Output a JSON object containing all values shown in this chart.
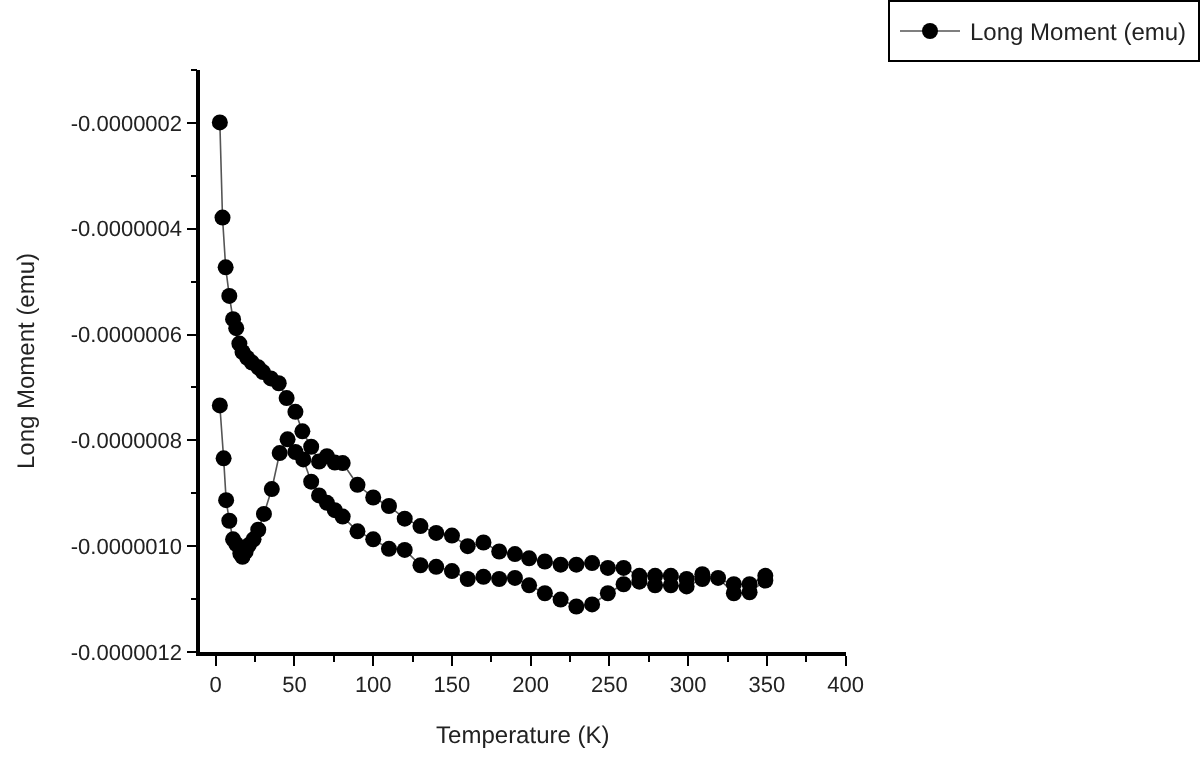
{
  "chart_data": {
    "type": "line",
    "xlabel": "Temperature (K)",
    "ylabel": "Long Moment (emu)",
    "xlim": [
      -10,
      400
    ],
    "xticks": [
      0,
      50,
      100,
      150,
      200,
      250,
      300,
      350,
      400
    ],
    "ylim": [
      -1.2e-06,
      -1e-07
    ],
    "yticks": [
      {
        "value": -1.2e-06,
        "label": "-0.0000012"
      },
      {
        "value": -1e-06,
        "label": "-0.0000010"
      },
      {
        "value": -8e-07,
        "label": "-0.0000008"
      },
      {
        "value": -6e-07,
        "label": "-0.0000006"
      },
      {
        "value": -4e-07,
        "label": "-0.0000004"
      },
      {
        "value": -2e-07,
        "label": "-0.0000002"
      }
    ],
    "legend": "top right",
    "marker": "circle",
    "line_style": "solid",
    "series": [
      {
        "name": "Long Moment (emu)",
        "color": "#000000",
        "x": [
          2.6,
          5,
          6.6,
          8.6,
          11,
          13,
          15.6,
          17,
          19,
          21,
          24,
          27,
          30.6,
          35.6,
          40.6,
          45.6,
          50.6,
          55.6,
          60.6,
          65.6,
          70.6,
          75.6,
          80.6,
          90,
          100,
          110,
          120,
          130,
          140,
          150,
          160,
          170,
          180,
          190,
          199,
          209,
          219,
          229,
          239,
          249,
          259,
          269,
          279,
          289,
          299,
          309,
          319,
          329,
          339,
          349,
          349,
          339,
          329,
          309,
          299,
          289,
          279,
          269,
          259,
          249,
          239,
          229,
          219,
          209,
          199,
          190,
          180,
          170,
          160,
          150,
          140,
          130,
          120,
          110,
          100,
          90,
          80.6,
          75.6,
          70.6,
          65.6,
          60.6,
          55,
          50.6,
          45,
          40,
          35,
          30,
          27,
          23,
          20,
          17,
          15,
          13,
          11,
          8.6,
          6.3,
          4.3,
          2.6
        ],
        "values": [
          -7.34e-07,
          -8.34e-07,
          -9.13e-07,
          -9.52e-07,
          -9.87e-07,
          -9.96e-07,
          -1.014e-06,
          -1.02e-06,
          -1.01e-06,
          -9.98e-07,
          -9.87e-07,
          -9.69e-07,
          -9.39e-07,
          -8.92e-07,
          -8.24e-07,
          -7.98e-07,
          -8.22e-07,
          -8.36e-07,
          -8.78e-07,
          -9.04e-07,
          -9.18e-07,
          -9.32e-07,
          -9.44e-07,
          -9.72e-07,
          -9.87e-07,
          -1.005e-06,
          -1.007e-06,
          -1.036e-06,
          -1.039e-06,
          -1.047e-06,
          -1.062e-06,
          -1.058e-06,
          -1.062e-06,
          -1.06e-06,
          -1.074e-06,
          -1.089e-06,
          -1.101e-06,
          -1.114e-06,
          -1.11e-06,
          -1.089e-06,
          -1.072e-06,
          -1.067e-06,
          -1.074e-06,
          -1.074e-06,
          -1.076e-06,
          -1.062e-06,
          -1.06e-06,
          -1.089e-06,
          -1.087e-06,
          -1.065e-06,
          -1.056e-06,
          -1.072e-06,
          -1.072e-06,
          -1.053e-06,
          -1.062e-06,
          -1.056e-06,
          -1.056e-06,
          -1.056e-06,
          -1.041e-06,
          -1.041e-06,
          -1.032e-06,
          -1.035e-06,
          -1.035e-06,
          -1.029e-06,
          -1.023e-06,
          -1.015e-06,
          -1.01e-06,
          -9.93e-07,
          -1e-06,
          -9.8e-07,
          -9.75e-07,
          -9.62e-07,
          -9.48e-07,
          -9.24e-07,
          -9.08e-07,
          -8.84e-07,
          -8.43e-07,
          -8.42e-07,
          -8.3e-07,
          -8.4e-07,
          -8.12e-07,
          -7.83e-07,
          -7.46e-07,
          -7.2e-07,
          -6.92e-07,
          -6.83e-07,
          -6.71e-07,
          -6.62e-07,
          -6.53e-07,
          -6.44e-07,
          -6.33e-07,
          -6.17e-07,
          -5.88e-07,
          -5.71e-07,
          -5.27e-07,
          -4.73e-07,
          -3.79e-07,
          -1.99e-07
        ]
      }
    ]
  }
}
